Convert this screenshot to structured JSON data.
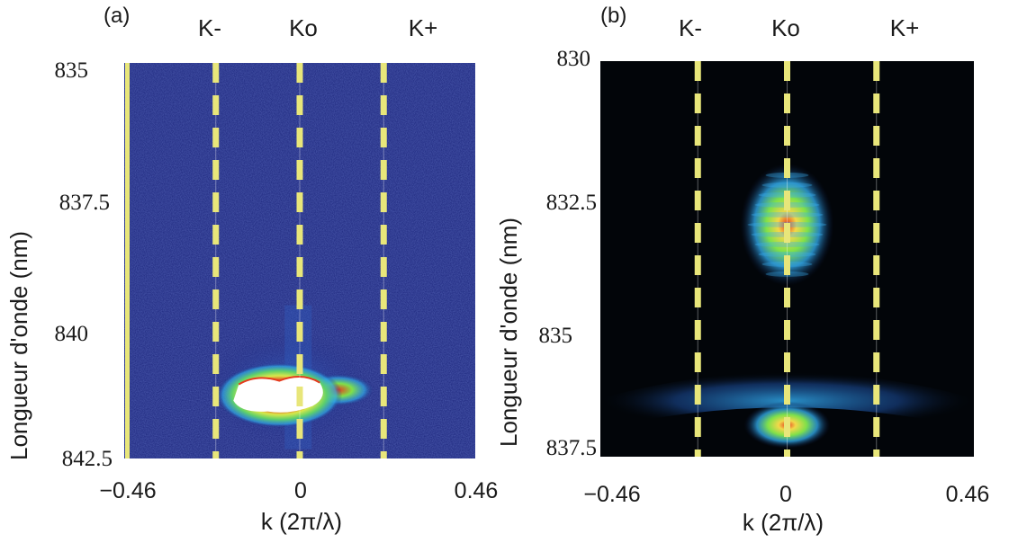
{
  "chart_data": [
    {
      "type": "heatmap",
      "panel_label": "(a)",
      "markers": [
        {
          "label": "K-",
          "k": -0.22
        },
        {
          "label": "Ko",
          "k": 0
        },
        {
          "label": "K+",
          "k": 0.22
        }
      ],
      "xlabel": "k (2π/λ)",
      "ylabel": "Longueur d'onde (nm)",
      "xlim": [
        -0.46,
        0.46
      ],
      "ylim": [
        835,
        842.5
      ],
      "xticks": [
        "−0.46",
        "0",
        "0.46"
      ],
      "yticks": [
        "835",
        "837.5",
        "840",
        "842.5"
      ],
      "colors": {
        "background": "#1a237a",
        "marker_line": "#e8e67a",
        "hot": "#ffffff",
        "warm": "#e53b1e",
        "mid": "#7fe04a",
        "cool": "#2fa6e6"
      },
      "emission": [
        {
          "k": -0.03,
          "wavelength": 841.3,
          "intensity": 1.0,
          "note": "saturated"
        },
        {
          "k": 0.1,
          "wavelength": 841.2,
          "intensity": 0.6
        }
      ]
    },
    {
      "type": "heatmap",
      "panel_label": "(b)",
      "markers": [
        {
          "label": "K-",
          "k": -0.22
        },
        {
          "label": "Ko",
          "k": 0
        },
        {
          "label": "K+",
          "k": 0.22
        }
      ],
      "xlabel": "k (2π/λ)",
      "ylabel": "Longueur d'onde (nm)",
      "xlim": [
        -0.46,
        0.46
      ],
      "ylim": [
        830,
        837.5
      ],
      "xticks": [
        "−0.46",
        "0",
        "0.46"
      ],
      "yticks": [
        "830",
        "832.5",
        "835",
        "837.5"
      ],
      "colors": {
        "background": "#020509",
        "marker_line": "#e8e67a",
        "hot": "#e53b1e",
        "mid": "#7fe04a",
        "cool": "#2fa6e6"
      },
      "emission": [
        {
          "k": 0,
          "wavelength": 833.1,
          "intensity": 0.9
        },
        {
          "k": 0,
          "wavelength": 836.9,
          "intensity": 0.9
        },
        {
          "k": 0,
          "wavelength": 836.6,
          "intensity": 0.3,
          "note": "parabolic band"
        }
      ]
    }
  ]
}
